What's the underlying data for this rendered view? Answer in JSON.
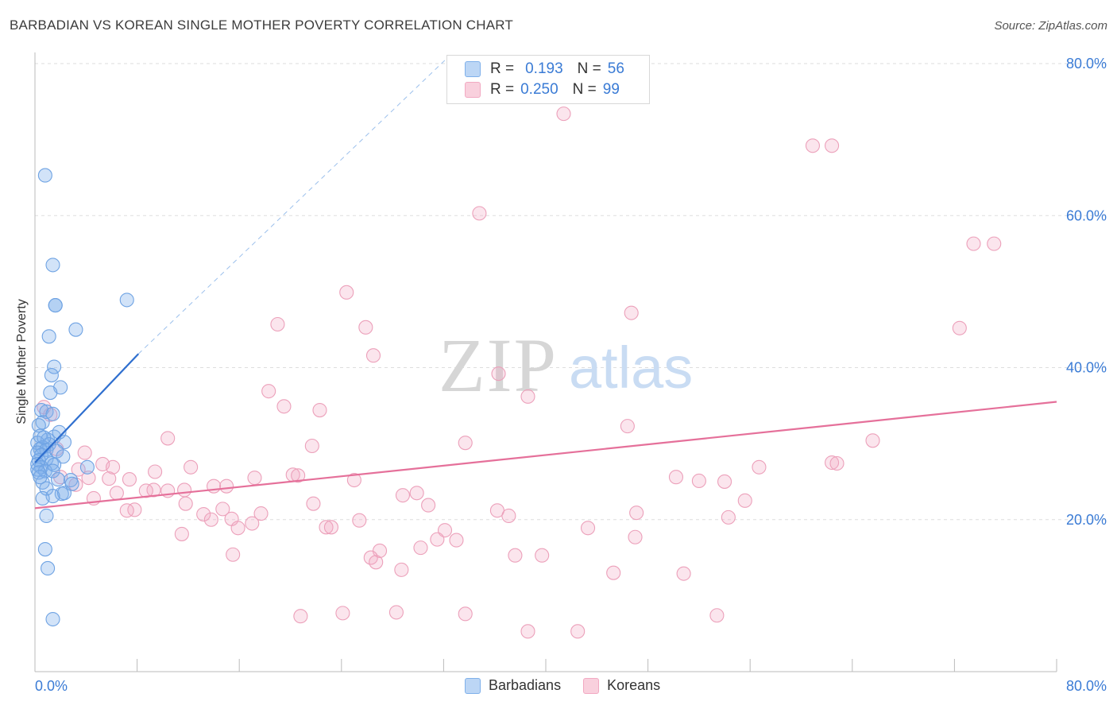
{
  "title": "BARBADIAN VS KOREAN SINGLE MOTHER POVERTY CORRELATION CHART",
  "source": "Source: ZipAtlas.com",
  "watermark": {
    "zip": "ZIP",
    "atlas": "atlas"
  },
  "legend": {
    "rows": [
      {
        "r_label": "R =",
        "r_value": "0.193",
        "n_label": "N =",
        "n_value": "56"
      },
      {
        "r_label": "R =",
        "r_value": "0.250",
        "n_label": "N =",
        "n_value": "99"
      }
    ]
  },
  "bottom_legend": {
    "items": [
      "Barbadians",
      "Koreans"
    ]
  },
  "chart_data": {
    "type": "scatter",
    "title": "BARBADIAN VS KOREAN SINGLE MOTHER POVERTY CORRELATION CHART",
    "xlabel": "",
    "ylabel": "Single Mother Poverty",
    "xlim": [
      0,
      80
    ],
    "ylim": [
      0,
      80
    ],
    "x_tick_labels": [
      "0.0%",
      "80.0%"
    ],
    "y_ticks": [
      20,
      40,
      60,
      80
    ],
    "y_tick_labels": [
      "20.0%",
      "40.0%",
      "60.0%",
      "80.0%"
    ],
    "grid": true,
    "colors": {
      "Barbadians": "#7fb0ea",
      "Koreans": "#f2a9c2",
      "blue_line": "#2f6fcf",
      "pink_line": "#e5709a",
      "tick_text": "#3a7bd5"
    },
    "series": [
      {
        "name": "Barbadians",
        "trend": {
          "x": [
            0,
            8.1
          ],
          "y": [
            27.5,
            41.8
          ]
        },
        "trend_extension": {
          "x": [
            8.1,
            32.2
          ],
          "y": [
            41.8,
            80.6
          ]
        },
        "points": [
          [
            0.8,
            65.3
          ],
          [
            1.4,
            53.5
          ],
          [
            1.6,
            48.2
          ],
          [
            1.6,
            48.2
          ],
          [
            7.2,
            48.9
          ],
          [
            3.2,
            45.0
          ],
          [
            1.1,
            44.1
          ],
          [
            1.5,
            40.1
          ],
          [
            1.3,
            39.0
          ],
          [
            2.0,
            37.4
          ],
          [
            1.2,
            36.7
          ],
          [
            0.5,
            34.4
          ],
          [
            0.9,
            34.2
          ],
          [
            1.4,
            33.9
          ],
          [
            0.6,
            32.8
          ],
          [
            0.3,
            32.4
          ],
          [
            0.4,
            31.0
          ],
          [
            1.0,
            30.5
          ],
          [
            2.3,
            30.2
          ],
          [
            1.5,
            30.9
          ],
          [
            0.2,
            30.1
          ],
          [
            1.1,
            29.9
          ],
          [
            0.6,
            29.5
          ],
          [
            0.4,
            29.3
          ],
          [
            0.9,
            29.2
          ],
          [
            0.2,
            28.8
          ],
          [
            1.7,
            29.0
          ],
          [
            0.5,
            28.5
          ],
          [
            2.2,
            28.3
          ],
          [
            0.9,
            28.0
          ],
          [
            0.3,
            27.8
          ],
          [
            1.3,
            27.4
          ],
          [
            0.2,
            27.3
          ],
          [
            1.5,
            27.2
          ],
          [
            0.5,
            26.9
          ],
          [
            4.1,
            26.9
          ],
          [
            0.2,
            26.6
          ],
          [
            0.8,
            26.4
          ],
          [
            1.4,
            26.4
          ],
          [
            0.3,
            26.2
          ],
          [
            1.8,
            25.3
          ],
          [
            2.8,
            25.2
          ],
          [
            0.6,
            24.9
          ],
          [
            2.9,
            24.7
          ],
          [
            0.9,
            24.1
          ],
          [
            2.1,
            23.4
          ],
          [
            2.3,
            23.5
          ],
          [
            1.4,
            23.1
          ],
          [
            0.6,
            22.8
          ],
          [
            0.9,
            20.5
          ],
          [
            0.8,
            16.1
          ],
          [
            1.0,
            13.6
          ],
          [
            1.4,
            6.9
          ],
          [
            0.4,
            25.6
          ],
          [
            1.9,
            31.5
          ],
          [
            0.7,
            30.8
          ]
        ]
      },
      {
        "name": "Koreans",
        "trend": {
          "x": [
            0,
            80
          ],
          "y": [
            21.5,
            35.5
          ]
        },
        "points": [
          [
            41.4,
            73.4
          ],
          [
            60.9,
            69.2
          ],
          [
            62.4,
            69.2
          ],
          [
            34.8,
            60.3
          ],
          [
            73.5,
            56.3
          ],
          [
            75.1,
            56.3
          ],
          [
            24.4,
            49.9
          ],
          [
            46.7,
            47.2
          ],
          [
            19.0,
            45.7
          ],
          [
            25.9,
            45.3
          ],
          [
            72.4,
            45.2
          ],
          [
            26.5,
            41.6
          ],
          [
            36.3,
            39.2
          ],
          [
            18.3,
            36.9
          ],
          [
            38.6,
            36.2
          ],
          [
            19.5,
            34.9
          ],
          [
            22.3,
            34.4
          ],
          [
            46.4,
            32.3
          ],
          [
            10.4,
            30.7
          ],
          [
            33.7,
            30.1
          ],
          [
            65.6,
            30.4
          ],
          [
            21.7,
            29.7
          ],
          [
            1.7,
            29.3
          ],
          [
            3.9,
            28.8
          ],
          [
            5.3,
            27.3
          ],
          [
            56.7,
            26.9
          ],
          [
            12.2,
            26.9
          ],
          [
            62.4,
            27.5
          ],
          [
            62.8,
            27.4
          ],
          [
            3.4,
            26.6
          ],
          [
            6.1,
            26.9
          ],
          [
            9.4,
            26.3
          ],
          [
            20.2,
            25.9
          ],
          [
            20.6,
            25.8
          ],
          [
            4.2,
            25.5
          ],
          [
            7.4,
            25.3
          ],
          [
            17.2,
            25.5
          ],
          [
            2.0,
            25.6
          ],
          [
            5.8,
            25.4
          ],
          [
            50.2,
            25.6
          ],
          [
            52.0,
            25.1
          ],
          [
            54.0,
            25.0
          ],
          [
            25.0,
            25.2
          ],
          [
            3.2,
            24.6
          ],
          [
            14.0,
            24.4
          ],
          [
            15.0,
            24.4
          ],
          [
            11.7,
            23.9
          ],
          [
            10.4,
            23.8
          ],
          [
            9.3,
            23.9
          ],
          [
            8.7,
            23.8
          ],
          [
            6.4,
            23.5
          ],
          [
            4.6,
            22.8
          ],
          [
            28.8,
            23.2
          ],
          [
            29.9,
            23.5
          ],
          [
            55.6,
            22.5
          ],
          [
            11.8,
            22.1
          ],
          [
            21.8,
            22.1
          ],
          [
            30.8,
            21.9
          ],
          [
            14.7,
            21.4
          ],
          [
            7.8,
            21.3
          ],
          [
            7.2,
            21.2
          ],
          [
            36.2,
            21.2
          ],
          [
            13.2,
            20.7
          ],
          [
            17.7,
            20.8
          ],
          [
            47.1,
            20.9
          ],
          [
            37.1,
            20.5
          ],
          [
            54.3,
            20.3
          ],
          [
            15.4,
            20.1
          ],
          [
            13.8,
            20.0
          ],
          [
            25.4,
            19.9
          ],
          [
            17.0,
            19.5
          ],
          [
            15.9,
            18.9
          ],
          [
            22.8,
            19.0
          ],
          [
            23.2,
            19.0
          ],
          [
            43.3,
            18.9
          ],
          [
            32.1,
            18.6
          ],
          [
            11.5,
            18.1
          ],
          [
            47.0,
            17.7
          ],
          [
            33.0,
            17.3
          ],
          [
            31.5,
            17.4
          ],
          [
            27.0,
            15.9
          ],
          [
            30.2,
            16.3
          ],
          [
            15.5,
            15.4
          ],
          [
            26.3,
            15.0
          ],
          [
            26.7,
            14.4
          ],
          [
            37.6,
            15.3
          ],
          [
            39.7,
            15.3
          ],
          [
            28.7,
            13.4
          ],
          [
            45.3,
            13.0
          ],
          [
            50.8,
            12.9
          ],
          [
            20.8,
            7.3
          ],
          [
            24.1,
            7.7
          ],
          [
            28.3,
            7.8
          ],
          [
            33.7,
            7.6
          ],
          [
            53.4,
            7.4
          ],
          [
            38.6,
            5.3
          ],
          [
            42.5,
            5.3
          ],
          [
            0.7,
            34.8
          ],
          [
            1.2,
            33.8
          ]
        ]
      }
    ]
  }
}
